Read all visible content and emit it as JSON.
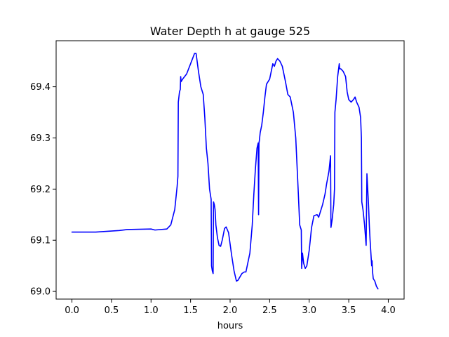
{
  "chart_data": {
    "type": "line",
    "title": "Water Depth h at gauge 525",
    "xlabel": "hours",
    "ylabel": "",
    "xlim": [
      -0.2,
      4.2
    ],
    "ylim": [
      68.985,
      69.49
    ],
    "x_ticks": [
      0.0,
      0.5,
      1.0,
      1.5,
      2.0,
      2.5,
      3.0,
      3.5,
      4.0
    ],
    "x_tick_labels": [
      "0.0",
      "0.5",
      "1.0",
      "1.5",
      "2.0",
      "2.5",
      "3.0",
      "3.5",
      "4.0"
    ],
    "y_ticks": [
      69.0,
      69.1,
      69.2,
      69.3,
      69.4
    ],
    "y_tick_labels": [
      "69.0",
      "69.1",
      "69.2",
      "69.3",
      "69.4"
    ],
    "grid": false,
    "legend": "none",
    "series": [
      {
        "color": "#0000ff",
        "points": [
          [
            0.0,
            69.116
          ],
          [
            0.3,
            69.116
          ],
          [
            0.6,
            69.119
          ],
          [
            0.7,
            69.121
          ],
          [
            1.0,
            69.122
          ],
          [
            1.05,
            69.12
          ],
          [
            1.2,
            69.122
          ],
          [
            1.25,
            69.13
          ],
          [
            1.3,
            69.16
          ],
          [
            1.33,
            69.205
          ],
          [
            1.34,
            69.225
          ],
          [
            1.345,
            69.37
          ],
          [
            1.36,
            69.39
          ],
          [
            1.37,
            69.395
          ],
          [
            1.375,
            69.42
          ],
          [
            1.38,
            69.41
          ],
          [
            1.4,
            69.415
          ],
          [
            1.45,
            69.425
          ],
          [
            1.5,
            69.445
          ],
          [
            1.55,
            69.465
          ],
          [
            1.57,
            69.465
          ],
          [
            1.6,
            69.43
          ],
          [
            1.63,
            69.4
          ],
          [
            1.66,
            69.385
          ],
          [
            1.68,
            69.34
          ],
          [
            1.7,
            69.28
          ],
          [
            1.72,
            69.25
          ],
          [
            1.74,
            69.2
          ],
          [
            1.76,
            69.18
          ],
          [
            1.765,
            69.05
          ],
          [
            1.775,
            69.04
          ],
          [
            1.785,
            69.035
          ],
          [
            1.79,
            69.175
          ],
          [
            1.8,
            69.17
          ],
          [
            1.81,
            69.16
          ],
          [
            1.82,
            69.13
          ],
          [
            1.84,
            69.105
          ],
          [
            1.86,
            69.09
          ],
          [
            1.88,
            69.088
          ],
          [
            1.9,
            69.1
          ],
          [
            1.93,
            69.123
          ],
          [
            1.95,
            69.126
          ],
          [
            1.98,
            69.115
          ],
          [
            2.02,
            69.07
          ],
          [
            2.05,
            69.04
          ],
          [
            2.08,
            69.02
          ],
          [
            2.1,
            69.022
          ],
          [
            2.15,
            69.035
          ],
          [
            2.18,
            69.038
          ],
          [
            2.2,
            69.038
          ],
          [
            2.25,
            69.075
          ],
          [
            2.28,
            69.13
          ],
          [
            2.3,
            69.19
          ],
          [
            2.32,
            69.24
          ],
          [
            2.34,
            69.28
          ],
          [
            2.355,
            69.29
          ],
          [
            2.36,
            69.15
          ],
          [
            2.365,
            69.29
          ],
          [
            2.37,
            69.295
          ],
          [
            2.38,
            69.31
          ],
          [
            2.4,
            69.325
          ],
          [
            2.42,
            69.35
          ],
          [
            2.44,
            69.38
          ],
          [
            2.46,
            69.405
          ],
          [
            2.48,
            69.41
          ],
          [
            2.5,
            69.415
          ],
          [
            2.52,
            69.43
          ],
          [
            2.54,
            69.445
          ],
          [
            2.56,
            69.44
          ],
          [
            2.58,
            69.45
          ],
          [
            2.6,
            69.455
          ],
          [
            2.63,
            69.45
          ],
          [
            2.66,
            69.44
          ],
          [
            2.7,
            69.41
          ],
          [
            2.73,
            69.385
          ],
          [
            2.76,
            69.38
          ],
          [
            2.8,
            69.35
          ],
          [
            2.83,
            69.3
          ],
          [
            2.86,
            69.2
          ],
          [
            2.88,
            69.13
          ],
          [
            2.9,
            69.12
          ],
          [
            2.905,
            69.045
          ],
          [
            2.915,
            69.075
          ],
          [
            2.93,
            69.055
          ],
          [
            2.95,
            69.045
          ],
          [
            2.97,
            69.05
          ],
          [
            3.0,
            69.08
          ],
          [
            3.03,
            69.125
          ],
          [
            3.06,
            69.148
          ],
          [
            3.1,
            69.15
          ],
          [
            3.12,
            69.145
          ],
          [
            3.15,
            69.16
          ],
          [
            3.17,
            69.17
          ],
          [
            3.2,
            69.19
          ],
          [
            3.22,
            69.21
          ],
          [
            3.25,
            69.235
          ],
          [
            3.27,
            69.265
          ],
          [
            3.275,
            69.125
          ],
          [
            3.29,
            69.14
          ],
          [
            3.31,
            69.17
          ],
          [
            3.32,
            69.2
          ],
          [
            3.325,
            69.35
          ],
          [
            3.34,
            69.375
          ],
          [
            3.36,
            69.42
          ],
          [
            3.38,
            69.445
          ],
          [
            3.385,
            69.435
          ],
          [
            3.4,
            69.435
          ],
          [
            3.43,
            69.43
          ],
          [
            3.46,
            69.42
          ],
          [
            3.48,
            69.39
          ],
          [
            3.5,
            69.375
          ],
          [
            3.53,
            69.37
          ],
          [
            3.56,
            69.375
          ],
          [
            3.58,
            69.38
          ],
          [
            3.6,
            69.37
          ],
          [
            3.63,
            69.36
          ],
          [
            3.65,
            69.34
          ],
          [
            3.66,
            69.3
          ],
          [
            3.665,
            69.175
          ],
          [
            3.68,
            69.16
          ],
          [
            3.7,
            69.13
          ],
          [
            3.72,
            69.09
          ],
          [
            3.73,
            69.23
          ],
          [
            3.74,
            69.2
          ],
          [
            3.75,
            69.17
          ],
          [
            3.76,
            69.13
          ],
          [
            3.77,
            69.1
          ],
          [
            3.78,
            69.075
          ],
          [
            3.79,
            69.05
          ],
          [
            3.795,
            69.06
          ],
          [
            3.8,
            69.04
          ],
          [
            3.81,
            69.025
          ],
          [
            3.83,
            69.02
          ],
          [
            3.85,
            69.01
          ],
          [
            3.87,
            69.005
          ]
        ]
      }
    ]
  }
}
